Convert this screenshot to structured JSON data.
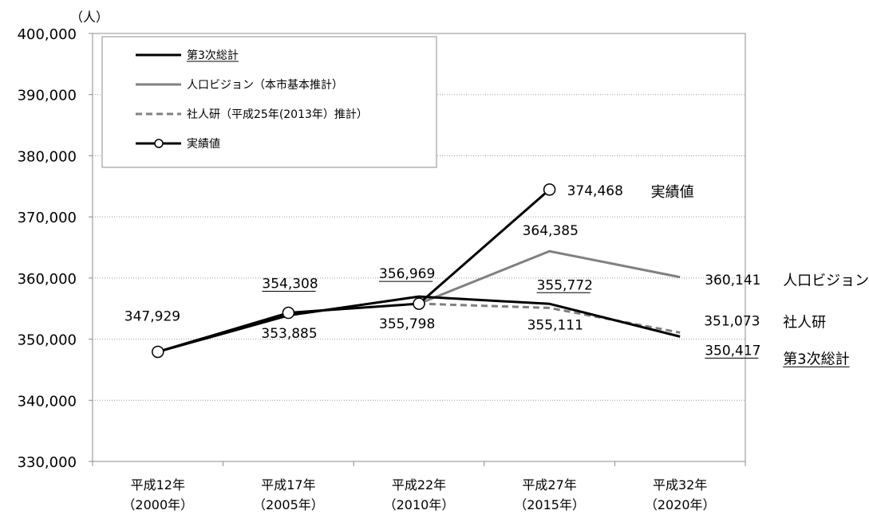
{
  "chart_data": {
    "type": "line",
    "unit_label": "（人）",
    "categories": [
      {
        "line1": "平成12年",
        "line2": "（2000年）"
      },
      {
        "line1": "平成17年",
        "line2": "（2005年）"
      },
      {
        "line1": "平成22年",
        "line2": "（2010年）"
      },
      {
        "line1": "平成27年",
        "line2": "（2015年）"
      },
      {
        "line1": "平成32年",
        "line2": "（2020年）"
      }
    ],
    "ylim": [
      330000,
      400000
    ],
    "yticks": [
      {
        "value": 330000,
        "label": "330,000"
      },
      {
        "value": 340000,
        "label": "340,000"
      },
      {
        "value": 350000,
        "label": "350,000"
      },
      {
        "value": 360000,
        "label": "360,000"
      },
      {
        "value": 370000,
        "label": "370,000"
      },
      {
        "value": 380000,
        "label": "380,000"
      },
      {
        "value": 390000,
        "label": "390,000"
      },
      {
        "value": 400000,
        "label": "400,000"
      }
    ],
    "grid": "horizontal-dotted",
    "legend_position": "top-left",
    "series": [
      {
        "id": "dai3ji",
        "name": "第3次総計",
        "end_label": "第3次総計",
        "color": "#000000",
        "style": "solid",
        "underline_name": true,
        "values": [
          347929,
          353885,
          356969,
          355772,
          350417
        ]
      },
      {
        "id": "jinko",
        "name": "人口ビジョン（本市基本推計）",
        "end_label": "人口ビジョン",
        "color": "#808080",
        "style": "solid",
        "underline_name": false,
        "values": [
          null,
          null,
          355798,
          364385,
          360141
        ]
      },
      {
        "id": "shajinken",
        "name": "社人研（平成25年(2013年）推計）",
        "end_label": "社人研",
        "color": "#808080",
        "style": "dashed",
        "underline_name": false,
        "values": [
          null,
          null,
          355798,
          355111,
          351073
        ]
      },
      {
        "id": "jisseki",
        "name": "実績値",
        "end_label": "実績値",
        "color": "#000000",
        "style": "solid-marker",
        "underline_name": false,
        "values": [
          347929,
          354308,
          355798,
          374468,
          null
        ]
      }
    ],
    "data_labels": [
      {
        "text": "347,929",
        "ci": 0,
        "value": 347929,
        "dx": -42,
        "dy": -39,
        "anchor": "start",
        "underline": false
      },
      {
        "text": "354,308",
        "ci": 1,
        "value": 354308,
        "dx": -33,
        "dy": -31,
        "anchor": "start",
        "underline": true
      },
      {
        "text": "353,885",
        "ci": 1,
        "value": 353885,
        "dx": -34,
        "dy": 28,
        "anchor": "start",
        "underline": false
      },
      {
        "text": "356,969",
        "ci": 2,
        "value": 356969,
        "dx": -50,
        "dy": -23,
        "anchor": "start",
        "underline": true
      },
      {
        "text": "355,798",
        "ci": 2,
        "value": 355798,
        "dx": -50,
        "dy": 31,
        "anchor": "start",
        "underline": false
      },
      {
        "text": "374,468",
        "ci": 3,
        "value": 374468,
        "dx": 22,
        "dy": 7,
        "anchor": "start",
        "underline": false
      },
      {
        "text": "364,385",
        "ci": 3,
        "value": 364385,
        "dx": -34,
        "dy": -20,
        "anchor": "start",
        "underline": false
      },
      {
        "text": "355,772",
        "ci": 3,
        "value": 355772,
        "dx": -16,
        "dy": -18,
        "anchor": "start",
        "underline": true
      },
      {
        "text": "355,111",
        "ci": 3,
        "value": 355111,
        "dx": -28,
        "dy": 27,
        "anchor": "start",
        "underline": false
      },
      {
        "text": "360,141",
        "ci": 4,
        "value": 360141,
        "dx": 31,
        "dy": 9,
        "anchor": "start",
        "underline": false
      },
      {
        "text": "351,073",
        "ci": 4,
        "value": 351073,
        "dx": 30,
        "dy": -9,
        "anchor": "start",
        "underline": false
      },
      {
        "text": "350,417",
        "ci": 4,
        "value": 350417,
        "dx": 31,
        "dy": 23,
        "anchor": "start",
        "underline": true
      }
    ],
    "end_labels": [
      {
        "series": "jisseki",
        "text": "実績値",
        "ci": 3,
        "value": 374468,
        "dx": 127,
        "dy": 9,
        "underline": false
      },
      {
        "series": "jinko",
        "text": "人口ビジョン",
        "ci": 4,
        "value": 360141,
        "dx": 129,
        "dy": 10,
        "underline": false
      },
      {
        "series": "shajinken",
        "text": "社人研",
        "ci": 4,
        "value": 351073,
        "dx": 129,
        "dy": -7,
        "underline": false
      },
      {
        "series": "dai3ji",
        "text": "第3次総計",
        "ci": 4,
        "value": 350417,
        "dx": 129,
        "dy": 34,
        "underline": true
      }
    ]
  }
}
